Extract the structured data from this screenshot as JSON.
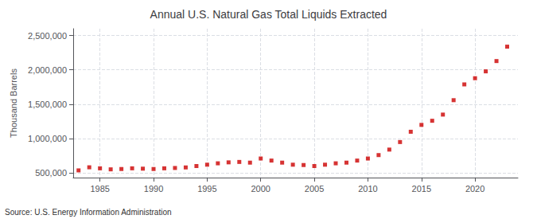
{
  "chart_data": {
    "type": "scatter",
    "title": "Annual U.S. Natural Gas Total Liquids Extracted",
    "ylabel": "Thousand Barrels",
    "source": "Source: U.S. Energy Information Administration",
    "x": [
      1983,
      1984,
      1985,
      1986,
      1987,
      1988,
      1989,
      1990,
      1991,
      1992,
      1993,
      1994,
      1995,
      1996,
      1997,
      1998,
      1999,
      2000,
      2001,
      2002,
      2003,
      2004,
      2005,
      2006,
      2007,
      2008,
      2009,
      2010,
      2011,
      2012,
      2013,
      2014,
      2015,
      2016,
      2017,
      2018,
      2019,
      2020,
      2021,
      2022,
      2023
    ],
    "values": [
      535000,
      580000,
      565000,
      550000,
      555000,
      565000,
      560000,
      555000,
      565000,
      570000,
      578000,
      598000,
      618000,
      638000,
      652000,
      658000,
      648000,
      708000,
      678000,
      648000,
      618000,
      613000,
      598000,
      618000,
      638000,
      648000,
      678000,
      708000,
      758000,
      838000,
      948000,
      1098000,
      1198000,
      1258000,
      1348000,
      1558000,
      1788000,
      1878000,
      1978000,
      2128000,
      2338000
    ],
    "color": "#cc0000",
    "marker": "square",
    "xlim": [
      1982.5,
      2024
    ],
    "xticks": [
      1985,
      1990,
      1995,
      2000,
      2005,
      2010,
      2015,
      2020
    ],
    "ylim": [
      430000,
      2600000
    ],
    "yticks": [
      {
        "value": 500000,
        "label": "500,000"
      },
      {
        "value": 1000000,
        "label": "1,000,000"
      },
      {
        "value": 1500000,
        "label": "1,500,000"
      },
      {
        "value": 2000000,
        "label": "2,000,000"
      },
      {
        "value": 2500000,
        "label": "2,500,000"
      }
    ],
    "grid": true
  }
}
